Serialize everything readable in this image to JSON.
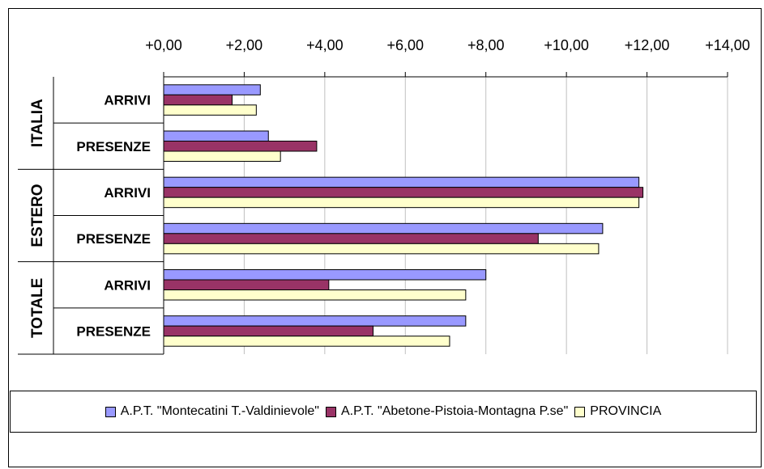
{
  "chart_data": {
    "type": "bar",
    "orientation": "horizontal",
    "title": "",
    "xlim": [
      0,
      14
    ],
    "x_tick_labels": [
      "+0,00",
      "+2,00",
      "+4,00",
      "+6,00",
      "+8,00",
      "+10,00",
      "+12,00",
      "+14,00"
    ],
    "x_axis_position": "top",
    "grid": true,
    "legend_position": "bottom",
    "groups": [
      {
        "label": "ITALIA",
        "categories": [
          "ARRIVI",
          "PRESENZE"
        ]
      },
      {
        "label": "ESTERO",
        "categories": [
          "ARRIVI",
          "PRESENZE"
        ]
      },
      {
        "label": "TOTALE",
        "categories": [
          "ARRIVI",
          "PRESENZE"
        ]
      }
    ],
    "series": [
      {
        "name": "A.P.T. \"Montecatini T.-Valdinievole\"",
        "color": "#9999ff",
        "values": [
          2.4,
          2.6,
          11.8,
          10.9,
          8.0,
          7.5
        ]
      },
      {
        "name": "A.P.T. \"Abetone-Pistoia-Montagna P.se\"",
        "color": "#993366",
        "values": [
          1.7,
          3.8,
          11.9,
          9.3,
          4.1,
          5.2
        ]
      },
      {
        "name": "PROVINCIA",
        "color": "#ffffcc",
        "values": [
          2.3,
          2.9,
          11.8,
          10.8,
          7.5,
          7.1
        ]
      }
    ]
  }
}
